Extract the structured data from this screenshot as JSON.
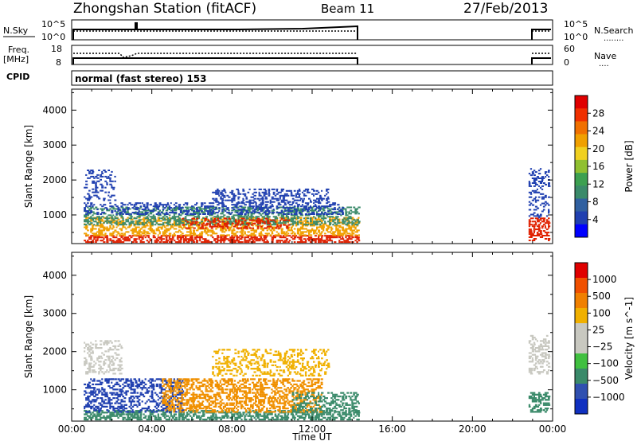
{
  "header": {
    "station": "Zhongshan Station (fitACF)",
    "beam": "Beam 11",
    "date": "27/Feb/2013"
  },
  "panels": {
    "nsky": {
      "label": "N.Sky",
      "ticks_left": [
        "10^5",
        "10^0"
      ],
      "ticks_right": [
        "10^5",
        "10^0"
      ],
      "right_label": "N.Search",
      "right_label_marker": "........"
    },
    "freq": {
      "label_line1": "Freq.",
      "label_line2": "[MHz]",
      "ticks_left": [
        "18",
        "8"
      ],
      "ticks_right": [
        "60",
        "0"
      ],
      "right_label": "Nave",
      "right_label_marker": "...."
    },
    "cpid": {
      "label": "CPID",
      "text": "normal (fast stereo) 153"
    }
  },
  "chart_data": [
    {
      "type": "heatmap",
      "name": "power",
      "xlabel": "",
      "ylabel": "Slant Range [km]",
      "x_ticks": [
        "00:00",
        "04:00",
        "08:00",
        "12:00",
        "16:00",
        "20:00",
        "00:00"
      ],
      "x_ticks_hours": [
        0,
        4,
        8,
        12,
        16,
        20,
        24
      ],
      "xlim_hours": [
        0,
        24
      ],
      "y_ticks": [
        1000,
        2000,
        3000,
        4000
      ],
      "ylim": [
        180,
        4600
      ],
      "colorbar": {
        "label": "Power [dB]",
        "ticks": [
          "4",
          "8",
          "12",
          "16",
          "20",
          "24",
          "28"
        ],
        "colors": [
          "#0000ff",
          "#2040b0",
          "#3060a0",
          "#3a8a6a",
          "#3ca050",
          "#90c030",
          "#f0d020",
          "#f0a000",
          "#f07000",
          "#f03000",
          "#e00000"
        ]
      },
      "data_gaps_hours": [
        [
          14.4,
          22.8
        ]
      ],
      "regions": [
        {
          "t0": 0.6,
          "t1": 14.3,
          "r0": 200,
          "r1": 420,
          "color": "#e02000",
          "density": 0.55
        },
        {
          "t0": 0.6,
          "t1": 14.3,
          "r0": 400,
          "r1": 900,
          "color": "#f0a000",
          "density": 0.45
        },
        {
          "t0": 0.6,
          "t1": 14.3,
          "r0": 700,
          "r1": 1200,
          "color": "#3a8a6a",
          "density": 0.4
        },
        {
          "t0": 0.6,
          "t1": 13.5,
          "r0": 1000,
          "r1": 1350,
          "color": "#2040b0",
          "density": 0.35
        },
        {
          "t0": 0.6,
          "t1": 2.2,
          "r0": 1400,
          "r1": 2300,
          "color": "#2040b0",
          "density": 0.25
        },
        {
          "t0": 7.0,
          "t1": 12.8,
          "r0": 1350,
          "r1": 1750,
          "color": "#2040b0",
          "density": 0.35
        },
        {
          "t0": 5.5,
          "t1": 10.8,
          "r0": 600,
          "r1": 900,
          "color": "#e02000",
          "density": 0.3
        },
        {
          "t0": 22.8,
          "t1": 23.8,
          "r0": 250,
          "r1": 900,
          "color": "#e02000",
          "density": 0.5
        },
        {
          "t0": 22.8,
          "t1": 23.8,
          "r0": 900,
          "r1": 2300,
          "color": "#2040b0",
          "density": 0.3
        }
      ]
    },
    {
      "type": "heatmap",
      "name": "velocity",
      "xlabel": "Time UT",
      "ylabel": "Slant Range [km]",
      "x_ticks": [
        "00:00",
        "04:00",
        "08:00",
        "12:00",
        "16:00",
        "20:00",
        "00:00"
      ],
      "x_ticks_hours": [
        0,
        4,
        8,
        12,
        16,
        20,
        24
      ],
      "xlim_hours": [
        0,
        24
      ],
      "y_ticks": [
        1000,
        2000,
        3000,
        4000
      ],
      "ylim": [
        180,
        4600
      ],
      "colorbar": {
        "label": "Velocity [m s^-1]",
        "ticks": [
          "1000",
          "500",
          "100",
          "25",
          "−25",
          "−100",
          "−500",
          "−1000"
        ],
        "colors": [
          "#1030c0",
          "#3050b0",
          "#3a8a6a",
          "#40c040",
          "#c8c8c0",
          "#c8c8c0",
          "#f0b000",
          "#f08000",
          "#f05000",
          "#e00000"
        ]
      },
      "data_gaps_hours": [
        [
          14.4,
          22.8
        ]
      ],
      "regions": [
        {
          "t0": 0.6,
          "t1": 14.3,
          "r0": 200,
          "r1": 450,
          "color": "#3a8a6a",
          "density": 0.55
        },
        {
          "t0": 0.6,
          "t1": 5.5,
          "r0": 400,
          "r1": 1300,
          "color": "#2040b0",
          "density": 0.4
        },
        {
          "t0": 4.5,
          "t1": 12.5,
          "r0": 400,
          "r1": 1300,
          "color": "#f09000",
          "density": 0.45
        },
        {
          "t0": 11.0,
          "t1": 14.3,
          "r0": 400,
          "r1": 900,
          "color": "#3a8a6a",
          "density": 0.4
        },
        {
          "t0": 0.6,
          "t1": 2.5,
          "r0": 1400,
          "r1": 2300,
          "color": "#c8c8c0",
          "density": 0.3
        },
        {
          "t0": 7.0,
          "t1": 12.8,
          "r0": 1350,
          "r1": 2050,
          "color": "#f0b000",
          "density": 0.3
        },
        {
          "t0": 22.8,
          "t1": 23.8,
          "r0": 400,
          "r1": 900,
          "color": "#3a8a6a",
          "density": 0.5
        },
        {
          "t0": 22.8,
          "t1": 23.8,
          "r0": 1400,
          "r1": 2400,
          "color": "#c8c8c0",
          "density": 0.35
        }
      ]
    }
  ]
}
